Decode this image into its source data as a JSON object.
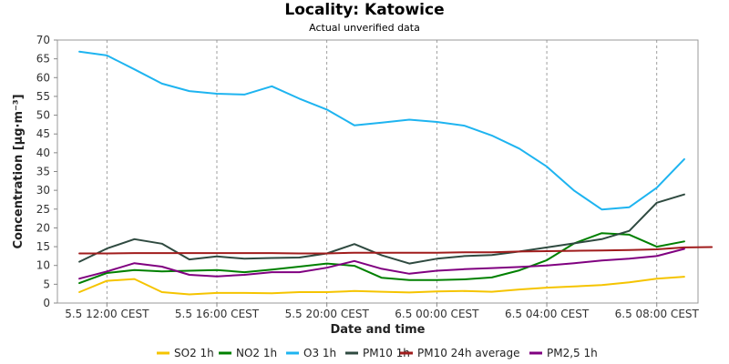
{
  "chart_data": {
    "type": "line",
    "title": "Locality: Katowice",
    "subtitle": "Actual unverified data",
    "xlabel": "Date and time",
    "ylabel": "Concentration [µg·m⁻³]",
    "ylim": [
      0,
      70
    ],
    "yticks": [
      0,
      5,
      10,
      15,
      20,
      25,
      30,
      35,
      40,
      45,
      50,
      55,
      60,
      65,
      70
    ],
    "x_hours_range": [
      10.2,
      33.5
    ],
    "xticks": [
      {
        "h": 12,
        "label": "5.5 12:00 CEST"
      },
      {
        "h": 16,
        "label": "5.5 16:00 CEST"
      },
      {
        "h": 20,
        "label": "5.5 20:00 CEST"
      },
      {
        "h": 24,
        "label": "6.5 00:00 CEST"
      },
      {
        "h": 28,
        "label": "6.5 04:00 CEST"
      },
      {
        "h": 32,
        "label": "6.5 08:00 CEST"
      }
    ],
    "grid": true,
    "legend_position": "bottom",
    "series": [
      {
        "name": "SO2 1h",
        "color": "#f5c400",
        "x": [
          11,
          12,
          13,
          14,
          15,
          16,
          17,
          18,
          19,
          20,
          21,
          22,
          23,
          24,
          25,
          26,
          27,
          28,
          29,
          30,
          31,
          32,
          33
        ],
        "y": [
          2.9,
          5.9,
          6.4,
          2.9,
          2.3,
          2.7,
          2.7,
          2.6,
          2.9,
          2.9,
          3.2,
          3.0,
          2.8,
          3.1,
          3.2,
          3.0,
          3.6,
          4.1,
          4.4,
          4.8,
          5.5,
          6.5,
          7.0
        ]
      },
      {
        "name": "NO2 1h",
        "color": "#008000",
        "x": [
          11,
          12,
          13,
          14,
          15,
          16,
          17,
          18,
          19,
          20,
          21,
          22,
          23,
          24,
          25,
          26,
          27,
          28,
          29,
          30,
          31,
          32,
          33
        ],
        "y": [
          5.3,
          8.0,
          8.8,
          8.4,
          8.6,
          8.8,
          8.2,
          8.9,
          9.7,
          10.5,
          9.9,
          6.7,
          6.1,
          6.1,
          6.3,
          6.8,
          8.7,
          11.4,
          15.9,
          18.6,
          18.2,
          15.0,
          16.4
        ]
      },
      {
        "name": "O3 1h",
        "color": "#1eb4f0",
        "x": [
          11,
          12,
          13,
          14,
          15,
          16,
          17,
          18,
          19,
          20,
          21,
          22,
          23,
          24,
          25,
          26,
          27,
          28,
          29,
          30,
          31,
          32,
          33
        ],
        "y": [
          66.9,
          65.9,
          62.2,
          58.4,
          56.4,
          55.7,
          55.5,
          57.7,
          54.4,
          51.5,
          47.3,
          48.0,
          48.8,
          48.2,
          47.2,
          44.6,
          41.1,
          36.3,
          29.9,
          24.9,
          25.5,
          30.7,
          38.3
        ]
      },
      {
        "name": "PM10 1h",
        "color": "#2f4a40",
        "x": [
          11,
          12,
          13,
          14,
          15,
          16,
          17,
          18,
          19,
          20,
          21,
          22,
          23,
          24,
          25,
          26,
          27,
          28,
          29,
          30,
          31,
          32,
          33
        ],
        "y": [
          11.0,
          14.5,
          17.0,
          15.8,
          11.6,
          12.4,
          11.8,
          12.0,
          12.1,
          13.2,
          15.7,
          12.7,
          10.5,
          11.8,
          12.5,
          12.8,
          13.7,
          14.8,
          15.9,
          17.0,
          19.2,
          26.7,
          28.9
        ]
      },
      {
        "name": "PM10 24h average",
        "color": "#a01c1c",
        "x": [
          11,
          12,
          13,
          14,
          15,
          16,
          17,
          18,
          19,
          20,
          21,
          22,
          23,
          24,
          25,
          26,
          27,
          28,
          29,
          30,
          31,
          32,
          33,
          34
        ],
        "y": [
          13.2,
          13.2,
          13.3,
          13.3,
          13.3,
          13.3,
          13.3,
          13.3,
          13.2,
          13.2,
          13.4,
          13.4,
          13.4,
          13.4,
          13.5,
          13.5,
          13.7,
          13.8,
          13.9,
          14.0,
          14.1,
          14.3,
          14.8,
          14.9
        ]
      },
      {
        "name": "PM2,5 1h",
        "color": "#800080",
        "x": [
          11,
          12,
          13,
          14,
          15,
          16,
          17,
          18,
          19,
          20,
          21,
          22,
          23,
          24,
          25,
          26,
          27,
          28,
          29,
          30,
          31,
          32,
          33
        ],
        "y": [
          6.5,
          8.4,
          10.6,
          9.7,
          7.5,
          7.1,
          7.5,
          8.2,
          8.2,
          9.4,
          11.2,
          9.1,
          7.8,
          8.6,
          9.0,
          9.3,
          9.6,
          10.0,
          10.6,
          11.3,
          11.8,
          12.5,
          14.4
        ]
      }
    ]
  }
}
